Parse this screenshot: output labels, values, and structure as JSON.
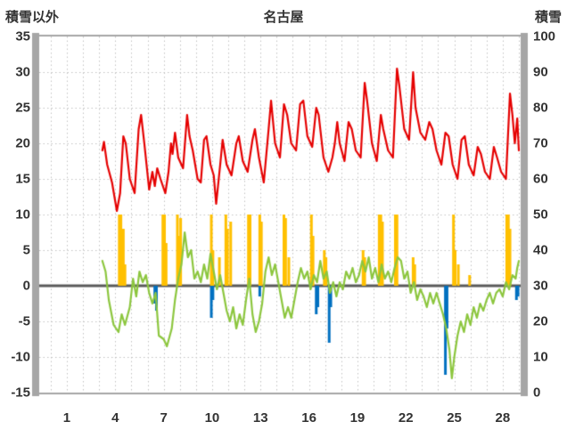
{
  "titles": {
    "left": "積雪以外",
    "center": "名古屋",
    "right": "積雪"
  },
  "axes": {
    "left_ticks": [
      35,
      30,
      25,
      20,
      15,
      10,
      5,
      0,
      -5,
      -10,
      -15
    ],
    "right_ticks": [
      100,
      90,
      80,
      70,
      60,
      50,
      40,
      30,
      20,
      10,
      0
    ],
    "x_ticks": [
      1,
      4,
      7,
      10,
      13,
      16,
      19,
      22,
      25,
      28
    ],
    "left_range": [
      -15,
      35
    ],
    "right_range": [
      0,
      100
    ],
    "x_range": [
      -0.71,
      29.11
    ],
    "grid": "dashed"
  },
  "colors": {
    "red": "#e50000",
    "green": "#8cc63e",
    "orange": "#ffc000",
    "blue": "#0070c0",
    "grid": "#c3c3c3",
    "zero_line": "#595959",
    "frame": "#a6a6a6",
    "text": "#333333",
    "background": "#ffffff"
  },
  "chart_data": {
    "type": "line",
    "title": "名古屋",
    "left_axis_label": "積雪以外",
    "right_axis_label": "積雪",
    "x_tick_labels": [
      1,
      4,
      7,
      10,
      13,
      16,
      19,
      22,
      25,
      28
    ],
    "left_axis_range": [
      -15,
      35
    ],
    "right_axis_range": [
      0,
      100
    ],
    "grid": true,
    "legend": "none",
    "series": [
      {
        "name": "orange-bars",
        "type": "bar",
        "axis": "left",
        "color_key": "orange",
        "points": [
          [
            4.25,
            10
          ],
          [
            4.35,
            10
          ],
          [
            4.5,
            8
          ],
          [
            4.6,
            3
          ],
          [
            6.95,
            10
          ],
          [
            7.05,
            10
          ],
          [
            7.15,
            6
          ],
          [
            7.85,
            10
          ],
          [
            7.95,
            7
          ],
          [
            8.05,
            9.5
          ],
          [
            9.95,
            10
          ],
          [
            10.05,
            5
          ],
          [
            10.45,
            4
          ],
          [
            10.85,
            10
          ],
          [
            10.95,
            8
          ],
          [
            11.15,
            9
          ],
          [
            12.25,
            10
          ],
          [
            12.35,
            10
          ],
          [
            12.95,
            10
          ],
          [
            13.05,
            9
          ],
          [
            14.45,
            10
          ],
          [
            14.55,
            9.5
          ],
          [
            14.75,
            4
          ],
          [
            16.15,
            10
          ],
          [
            16.25,
            7
          ],
          [
            16.95,
            5
          ],
          [
            17.05,
            4
          ],
          [
            19.35,
            5
          ],
          [
            19.45,
            4
          ],
          [
            20.35,
            10
          ],
          [
            20.45,
            10
          ],
          [
            20.55,
            9
          ],
          [
            21.35,
            10
          ],
          [
            21.45,
            10
          ],
          [
            22.45,
            4
          ],
          [
            22.55,
            3
          ],
          [
            24.95,
            10
          ],
          [
            25.05,
            5
          ],
          [
            25.25,
            3
          ],
          [
            25.95,
            1.5
          ],
          [
            28.25,
            10
          ],
          [
            28.35,
            10
          ],
          [
            28.45,
            8
          ]
        ]
      },
      {
        "name": "blue-bars",
        "type": "bar",
        "axis": "left",
        "color_key": "blue",
        "points": [
          [
            6.45,
            -2.5
          ],
          [
            6.55,
            -3.5
          ],
          [
            9.95,
            -4.5
          ],
          [
            10.05,
            -2
          ],
          [
            12.95,
            -1.5
          ],
          [
            16.45,
            -4
          ],
          [
            16.55,
            -3
          ],
          [
            17.25,
            -8
          ],
          [
            17.35,
            -3
          ],
          [
            24.45,
            -12.5
          ],
          [
            24.55,
            -6
          ],
          [
            28.85,
            -2
          ],
          [
            28.95,
            -1.5
          ]
        ]
      },
      {
        "name": "green-line",
        "type": "line",
        "axis": "left",
        "color_key": "green",
        "points": [
          [
            3.2,
            3.5
          ],
          [
            3.4,
            2
          ],
          [
            3.6,
            -2
          ],
          [
            3.9,
            -5.5
          ],
          [
            4.2,
            -6.5
          ],
          [
            4.4,
            -4
          ],
          [
            4.6,
            -5.5
          ],
          [
            4.9,
            -3
          ],
          [
            5.1,
            1
          ],
          [
            5.3,
            -1.5
          ],
          [
            5.5,
            2
          ],
          [
            5.7,
            0.5
          ],
          [
            5.9,
            1.5
          ],
          [
            6.1,
            -1
          ],
          [
            6.3,
            -2.5
          ],
          [
            6.5,
            -1
          ],
          [
            6.7,
            -7
          ],
          [
            7.0,
            -7.5
          ],
          [
            7.2,
            -8.5
          ],
          [
            7.5,
            -6
          ],
          [
            7.7,
            -2
          ],
          [
            7.9,
            1
          ],
          [
            8.1,
            3
          ],
          [
            8.3,
            7.5
          ],
          [
            8.5,
            4
          ],
          [
            8.7,
            5
          ],
          [
            8.9,
            1
          ],
          [
            9.1,
            2
          ],
          [
            9.3,
            0.5
          ],
          [
            9.5,
            3
          ],
          [
            9.7,
            1
          ],
          [
            9.9,
            4.5
          ],
          [
            10.1,
            2
          ],
          [
            10.3,
            -0.5
          ],
          [
            10.5,
            1.5
          ],
          [
            10.7,
            -1
          ],
          [
            10.9,
            -3.5
          ],
          [
            11.1,
            -5
          ],
          [
            11.3,
            -3
          ],
          [
            11.5,
            -6
          ],
          [
            11.7,
            -4
          ],
          [
            11.9,
            -5.5
          ],
          [
            12.1,
            -2
          ],
          [
            12.3,
            1
          ],
          [
            12.5,
            -4
          ],
          [
            12.7,
            -6.5
          ],
          [
            12.9,
            -5
          ],
          [
            13.1,
            -2.5
          ],
          [
            13.3,
            2
          ],
          [
            13.5,
            4
          ],
          [
            13.7,
            1.5
          ],
          [
            13.9,
            3
          ],
          [
            14.1,
            0.5
          ],
          [
            14.3,
            -2
          ],
          [
            14.5,
            -4.5
          ],
          [
            14.7,
            -3
          ],
          [
            14.9,
            -4.5
          ],
          [
            15.1,
            -2
          ],
          [
            15.3,
            0.5
          ],
          [
            15.5,
            2.5
          ],
          [
            15.7,
            1
          ],
          [
            15.9,
            2
          ],
          [
            16.1,
            -0.5
          ],
          [
            16.3,
            1.5
          ],
          [
            16.5,
            0.5
          ],
          [
            16.7,
            3.5
          ],
          [
            16.9,
            1
          ],
          [
            17.1,
            2
          ],
          [
            17.3,
            -1
          ],
          [
            17.5,
            0.5
          ],
          [
            17.7,
            -1.5
          ],
          [
            17.9,
            0.5
          ],
          [
            18.1,
            -0.5
          ],
          [
            18.3,
            2
          ],
          [
            18.5,
            1
          ],
          [
            18.7,
            2.5
          ],
          [
            18.9,
            0.5
          ],
          [
            19.1,
            1.5
          ],
          [
            19.3,
            3.5
          ],
          [
            19.5,
            2
          ],
          [
            19.7,
            4
          ],
          [
            19.9,
            1
          ],
          [
            20.1,
            2.5
          ],
          [
            20.3,
            0.5
          ],
          [
            20.5,
            3
          ],
          [
            20.7,
            1
          ],
          [
            20.9,
            2
          ],
          [
            21.1,
            0.5
          ],
          [
            21.3,
            2.5
          ],
          [
            21.5,
            4
          ],
          [
            21.7,
            3.5
          ],
          [
            21.9,
            1
          ],
          [
            22.1,
            2
          ],
          [
            22.3,
            -1
          ],
          [
            22.5,
            0.5
          ],
          [
            22.7,
            -2
          ],
          [
            22.9,
            -0.5
          ],
          [
            23.1,
            -1.5
          ],
          [
            23.3,
            -3
          ],
          [
            23.5,
            -1
          ],
          [
            23.7,
            -2.5
          ],
          [
            23.9,
            -1
          ],
          [
            24.1,
            -2.5
          ],
          [
            24.3,
            -4
          ],
          [
            24.5,
            -6
          ],
          [
            24.7,
            -9
          ],
          [
            24.85,
            -13
          ],
          [
            25.0,
            -10
          ],
          [
            25.2,
            -7
          ],
          [
            25.4,
            -5
          ],
          [
            25.6,
            -6.5
          ],
          [
            25.8,
            -4
          ],
          [
            26.0,
            -5.5
          ],
          [
            26.2,
            -3
          ],
          [
            26.4,
            -4.5
          ],
          [
            26.6,
            -2.5
          ],
          [
            26.8,
            -3.5
          ],
          [
            27.0,
            -2
          ],
          [
            27.2,
            -1
          ],
          [
            27.4,
            -2.5
          ],
          [
            27.6,
            -1
          ],
          [
            27.8,
            -0.5
          ],
          [
            28.0,
            -1.5
          ],
          [
            28.2,
            0.5
          ],
          [
            28.4,
            -0.5
          ],
          [
            28.6,
            1.5
          ],
          [
            28.8,
            1
          ],
          [
            28.9,
            2.5
          ],
          [
            29.0,
            3.5
          ]
        ]
      },
      {
        "name": "red-line",
        "type": "line",
        "axis": "left",
        "color_key": "red",
        "points": [
          [
            3.2,
            19
          ],
          [
            3.3,
            20.2
          ],
          [
            3.5,
            17
          ],
          [
            3.8,
            14.5
          ],
          [
            4.1,
            10.5
          ],
          [
            4.3,
            13
          ],
          [
            4.5,
            21
          ],
          [
            4.65,
            20
          ],
          [
            4.9,
            15
          ],
          [
            5.2,
            13
          ],
          [
            5.45,
            22
          ],
          [
            5.6,
            24
          ],
          [
            5.8,
            20
          ],
          [
            6.1,
            13.5
          ],
          [
            6.3,
            16
          ],
          [
            6.45,
            14
          ],
          [
            6.6,
            16.5
          ],
          [
            6.8,
            15
          ],
          [
            7.1,
            13
          ],
          [
            7.3,
            16
          ],
          [
            7.45,
            20
          ],
          [
            7.55,
            18.5
          ],
          [
            7.7,
            21.5
          ],
          [
            7.9,
            18
          ],
          [
            8.2,
            16.5
          ],
          [
            8.45,
            24
          ],
          [
            8.6,
            21
          ],
          [
            8.8,
            19
          ],
          [
            9.1,
            15
          ],
          [
            9.3,
            14.5
          ],
          [
            9.5,
            20.5
          ],
          [
            9.65,
            21
          ],
          [
            9.9,
            17
          ],
          [
            10.1,
            15.5
          ],
          [
            10.25,
            11.5
          ],
          [
            10.5,
            17
          ],
          [
            10.65,
            20.5
          ],
          [
            10.9,
            17
          ],
          [
            11.2,
            15.5
          ],
          [
            11.5,
            20
          ],
          [
            11.65,
            21
          ],
          [
            11.9,
            17.5
          ],
          [
            12.2,
            16
          ],
          [
            12.5,
            20.5
          ],
          [
            12.65,
            22
          ],
          [
            12.9,
            18
          ],
          [
            13.2,
            14.5
          ],
          [
            13.5,
            22
          ],
          [
            13.65,
            26
          ],
          [
            13.9,
            20
          ],
          [
            14.2,
            18
          ],
          [
            14.45,
            25.5
          ],
          [
            14.65,
            24
          ],
          [
            14.9,
            20
          ],
          [
            15.2,
            19
          ],
          [
            15.45,
            25.5
          ],
          [
            15.65,
            26
          ],
          [
            15.9,
            21
          ],
          [
            16.2,
            19.5
          ],
          [
            16.45,
            25
          ],
          [
            16.6,
            24
          ],
          [
            16.9,
            18
          ],
          [
            17.2,
            16
          ],
          [
            17.45,
            18
          ],
          [
            17.6,
            20
          ],
          [
            17.75,
            23
          ],
          [
            17.9,
            20
          ],
          [
            18.2,
            17.5
          ],
          [
            18.45,
            23
          ],
          [
            18.65,
            22
          ],
          [
            18.9,
            19
          ],
          [
            19.2,
            18
          ],
          [
            19.45,
            28.5
          ],
          [
            19.6,
            26
          ],
          [
            19.9,
            20
          ],
          [
            20.2,
            17.5
          ],
          [
            20.45,
            24
          ],
          [
            20.6,
            22
          ],
          [
            20.9,
            19
          ],
          [
            21.2,
            18
          ],
          [
            21.45,
            30.5
          ],
          [
            21.6,
            28
          ],
          [
            21.9,
            22
          ],
          [
            22.2,
            20.5
          ],
          [
            22.45,
            30
          ],
          [
            22.6,
            25
          ],
          [
            22.9,
            21.5
          ],
          [
            23.2,
            20.5
          ],
          [
            23.45,
            23
          ],
          [
            23.65,
            22
          ],
          [
            23.9,
            19
          ],
          [
            24.2,
            17
          ],
          [
            24.45,
            21.5
          ],
          [
            24.65,
            21
          ],
          [
            24.9,
            17
          ],
          [
            25.2,
            15
          ],
          [
            25.45,
            20.5
          ],
          [
            25.65,
            21
          ],
          [
            25.9,
            17
          ],
          [
            26.2,
            15.5
          ],
          [
            26.45,
            19.5
          ],
          [
            26.65,
            18.5
          ],
          [
            26.9,
            16
          ],
          [
            27.2,
            15
          ],
          [
            27.45,
            19.5
          ],
          [
            27.65,
            18
          ],
          [
            27.9,
            16
          ],
          [
            28.2,
            15
          ],
          [
            28.45,
            27
          ],
          [
            28.6,
            24
          ],
          [
            28.75,
            20
          ],
          [
            28.9,
            23.5
          ],
          [
            29.0,
            19
          ]
        ]
      }
    ]
  }
}
